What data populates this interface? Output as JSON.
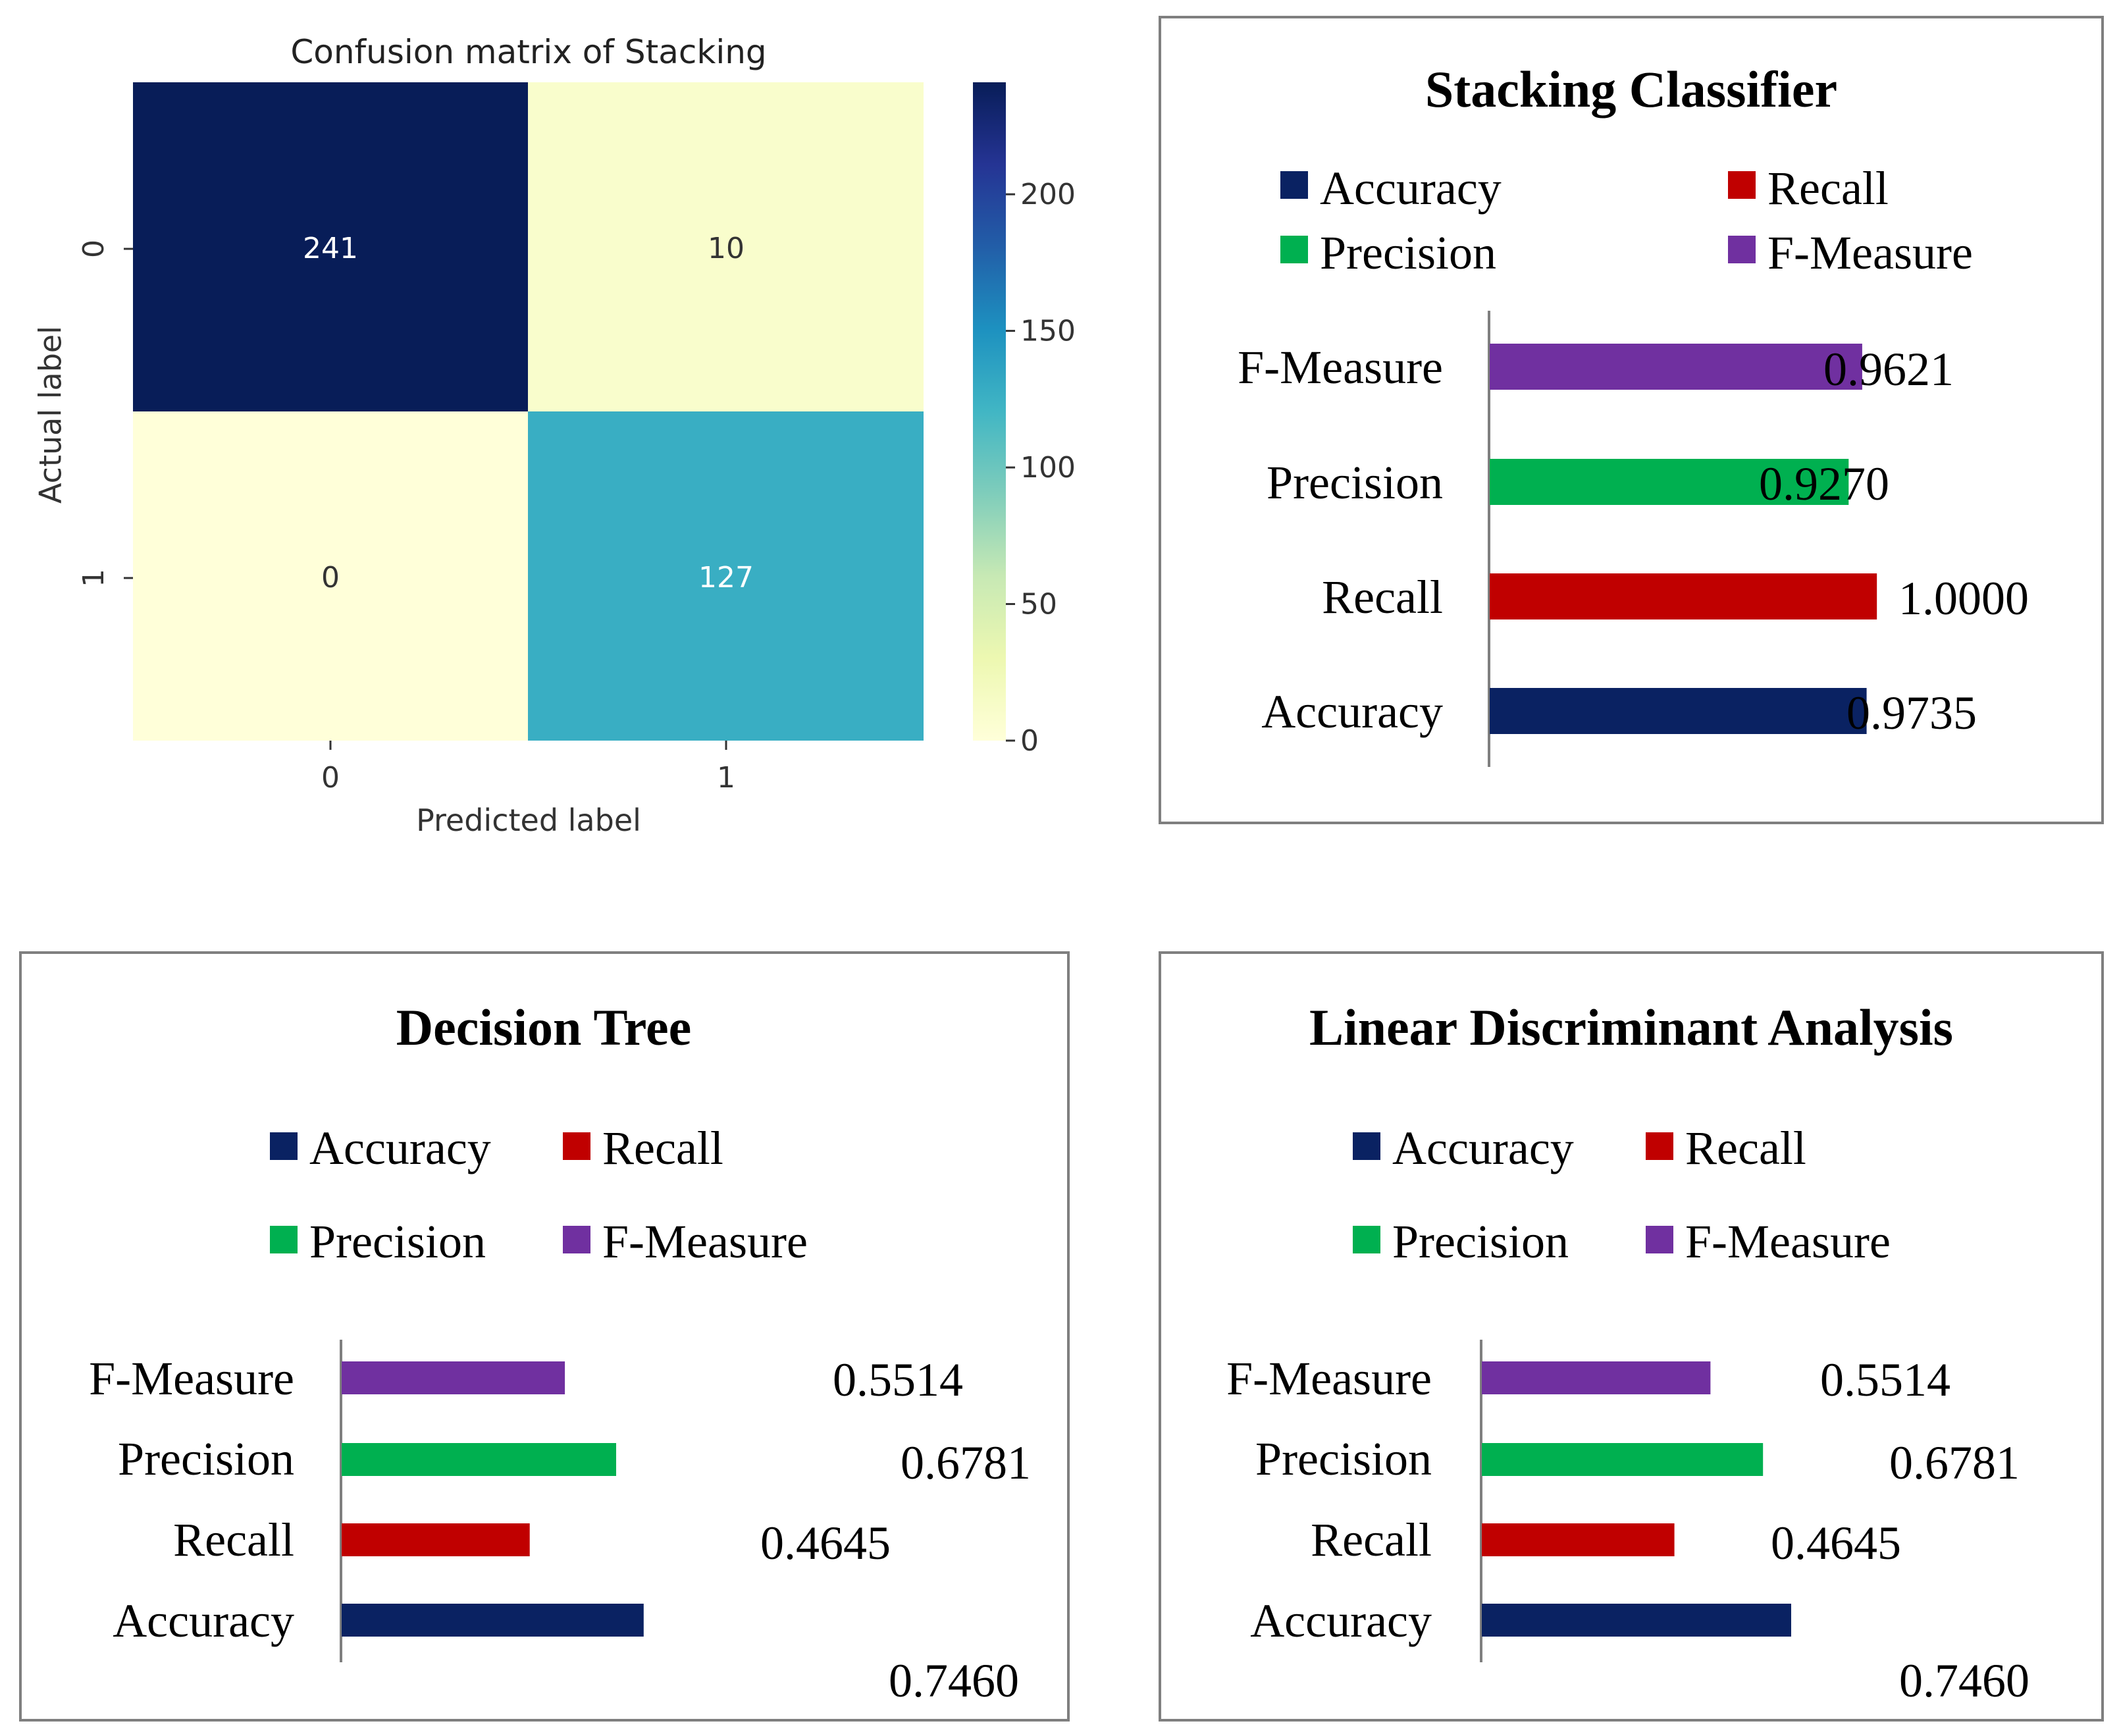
{
  "colors": {
    "accuracy": "#0a2262",
    "recall": "#c00000",
    "precision": "#00b050",
    "fmeasure": "#7030a0",
    "panel_border": "#7f7f7f",
    "axis": "#7f7f7f"
  },
  "chart_data": [
    {
      "type": "heatmap",
      "title": "Confusion matrix of Stacking",
      "xlabel": "Predicted label",
      "ylabel": "Actual label",
      "x_ticks": [
        "0",
        "1"
      ],
      "y_ticks": [
        "0",
        "1"
      ],
      "values": [
        [
          241,
          10
        ],
        [
          0,
          127
        ]
      ],
      "value_labels": [
        [
          "241",
          "10"
        ],
        [
          "0",
          "127"
        ]
      ],
      "colorbar": {
        "range": [
          0,
          241
        ],
        "ticks": [
          0,
          50,
          100,
          150,
          200
        ],
        "tick_labels": [
          "0",
          "50",
          "100",
          "150",
          "200"
        ],
        "colormap": "YlGnBu"
      }
    },
    {
      "type": "bar",
      "orientation": "horizontal",
      "title": "Stacking Classifier",
      "legend": [
        "Accuracy",
        "Recall",
        "Precision",
        "F-Measure"
      ],
      "legend_position": "top",
      "categories": [
        "F-Measure",
        "Precision",
        "Recall",
        "Accuracy"
      ],
      "values": [
        0.9621,
        0.927,
        1.0,
        0.9735
      ],
      "value_labels": [
        "0.9621",
        "0.9270",
        "1.0000",
        "0.9735"
      ],
      "xlim": [
        0,
        1.7
      ]
    },
    {
      "type": "bar",
      "orientation": "horizontal",
      "title": "Decision Tree",
      "legend": [
        "Accuracy",
        "Recall",
        "Precision",
        "F-Measure"
      ],
      "legend_position": "top",
      "categories": [
        "F-Measure",
        "Precision",
        "Recall",
        "Accuracy"
      ],
      "values": [
        0.5514,
        0.6781,
        0.4645,
        0.746
      ],
      "value_labels": [
        "0.5514",
        "0.6781",
        "0.4645",
        "0.7460"
      ],
      "xlim": [
        0,
        1.0
      ]
    },
    {
      "type": "bar",
      "orientation": "horizontal",
      "title": "Linear Discriminant Analysis",
      "legend": [
        "Accuracy",
        "Recall",
        "Precision",
        "F-Measure"
      ],
      "legend_position": "top",
      "categories": [
        "F-Measure",
        "Precision",
        "Recall",
        "Accuracy"
      ],
      "values": [
        0.5514,
        0.6781,
        0.4645,
        0.746
      ],
      "value_labels": [
        "0.5514",
        "0.6781",
        "0.4645",
        "0.7460"
      ],
      "xlim": [
        0,
        1.2
      ]
    }
  ]
}
